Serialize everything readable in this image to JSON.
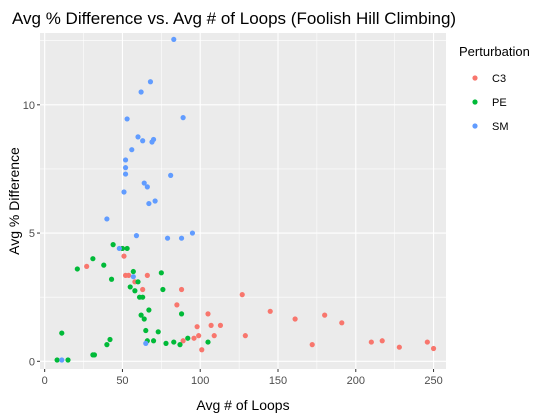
{
  "chart_data": {
    "type": "scatter",
    "title": "Avg % Difference vs. Avg # of Loops (Foolish Hill Climbing)",
    "xlabel": "Avg # of Loops",
    "ylabel": "Avg % Difference",
    "xlim": [
      -3,
      258
    ],
    "ylim": [
      -0.3,
      12.8
    ],
    "xticks": [
      0,
      50,
      100,
      150,
      200,
      250
    ],
    "yticks": [
      0,
      5,
      10
    ],
    "grid": true,
    "background": "#ebebeb",
    "legend": {
      "title": "Perturbation",
      "position": "top-right"
    },
    "series": [
      {
        "name": "C3",
        "color": "#f8766d",
        "points": [
          [
            27,
            3.7
          ],
          [
            50,
            4.4
          ],
          [
            51,
            4.1
          ],
          [
            52,
            3.35
          ],
          [
            54,
            3.35
          ],
          [
            58,
            3.1
          ],
          [
            63,
            2.8
          ],
          [
            66,
            3.35
          ],
          [
            85,
            2.2
          ],
          [
            88,
            2.8
          ],
          [
            89,
            0.8
          ],
          [
            96,
            0.9
          ],
          [
            98,
            1.35
          ],
          [
            99,
            1.0
          ],
          [
            101,
            0.45
          ],
          [
            105,
            1.85
          ],
          [
            107,
            1.4
          ],
          [
            109,
            1.0
          ],
          [
            113,
            1.4
          ],
          [
            127,
            2.6
          ],
          [
            129,
            1.0
          ],
          [
            145,
            1.95
          ],
          [
            161,
            1.65
          ],
          [
            172,
            0.65
          ],
          [
            180,
            1.8
          ],
          [
            191,
            1.5
          ],
          [
            210,
            0.75
          ],
          [
            217,
            0.8
          ],
          [
            228,
            0.55
          ],
          [
            246,
            0.75
          ],
          [
            250,
            0.5
          ]
        ]
      },
      {
        "name": "PE",
        "color": "#00ba38",
        "points": [
          [
            8,
            0.05
          ],
          [
            11,
            1.1
          ],
          [
            15,
            0.05
          ],
          [
            21,
            3.6
          ],
          [
            31,
            4.0
          ],
          [
            31,
            0.25
          ],
          [
            32,
            0.25
          ],
          [
            38,
            3.75
          ],
          [
            40,
            0.65
          ],
          [
            42,
            0.85
          ],
          [
            43,
            3.2
          ],
          [
            44,
            4.55
          ],
          [
            50,
            4.4
          ],
          [
            53,
            4.4
          ],
          [
            55,
            2.9
          ],
          [
            57,
            3.5
          ],
          [
            58,
            2.75
          ],
          [
            60,
            3.1
          ],
          [
            61,
            2.5
          ],
          [
            62,
            1.8
          ],
          [
            63,
            2.5
          ],
          [
            64,
            1.65
          ],
          [
            65,
            1.2
          ],
          [
            66,
            0.8
          ],
          [
            67,
            2.0
          ],
          [
            70,
            0.8
          ],
          [
            73,
            1.15
          ],
          [
            75,
            3.45
          ],
          [
            76,
            2.8
          ],
          [
            78,
            0.7
          ],
          [
            83,
            0.75
          ],
          [
            87,
            0.65
          ],
          [
            88,
            1.85
          ],
          [
            92,
            0.9
          ],
          [
            105,
            0.75
          ]
        ]
      },
      {
        "name": "SM",
        "color": "#619cff",
        "points": [
          [
            11,
            0.05
          ],
          [
            40,
            5.55
          ],
          [
            48,
            4.4
          ],
          [
            51,
            6.6
          ],
          [
            52,
            7.3
          ],
          [
            52,
            7.55
          ],
          [
            52,
            7.85
          ],
          [
            53,
            9.45
          ],
          [
            56,
            8.25
          ],
          [
            57,
            3.3
          ],
          [
            59,
            4.9
          ],
          [
            60,
            8.75
          ],
          [
            62,
            10.5
          ],
          [
            63,
            8.6
          ],
          [
            64,
            6.95
          ],
          [
            65,
            0.7
          ],
          [
            66,
            6.8
          ],
          [
            67,
            6.15
          ],
          [
            68,
            10.9
          ],
          [
            69,
            8.55
          ],
          [
            70,
            8.65
          ],
          [
            71,
            6.25
          ],
          [
            79,
            4.8
          ],
          [
            81,
            7.25
          ],
          [
            83,
            12.55
          ],
          [
            88,
            4.8
          ],
          [
            89,
            9.5
          ],
          [
            95,
            5.0
          ]
        ]
      }
    ]
  }
}
